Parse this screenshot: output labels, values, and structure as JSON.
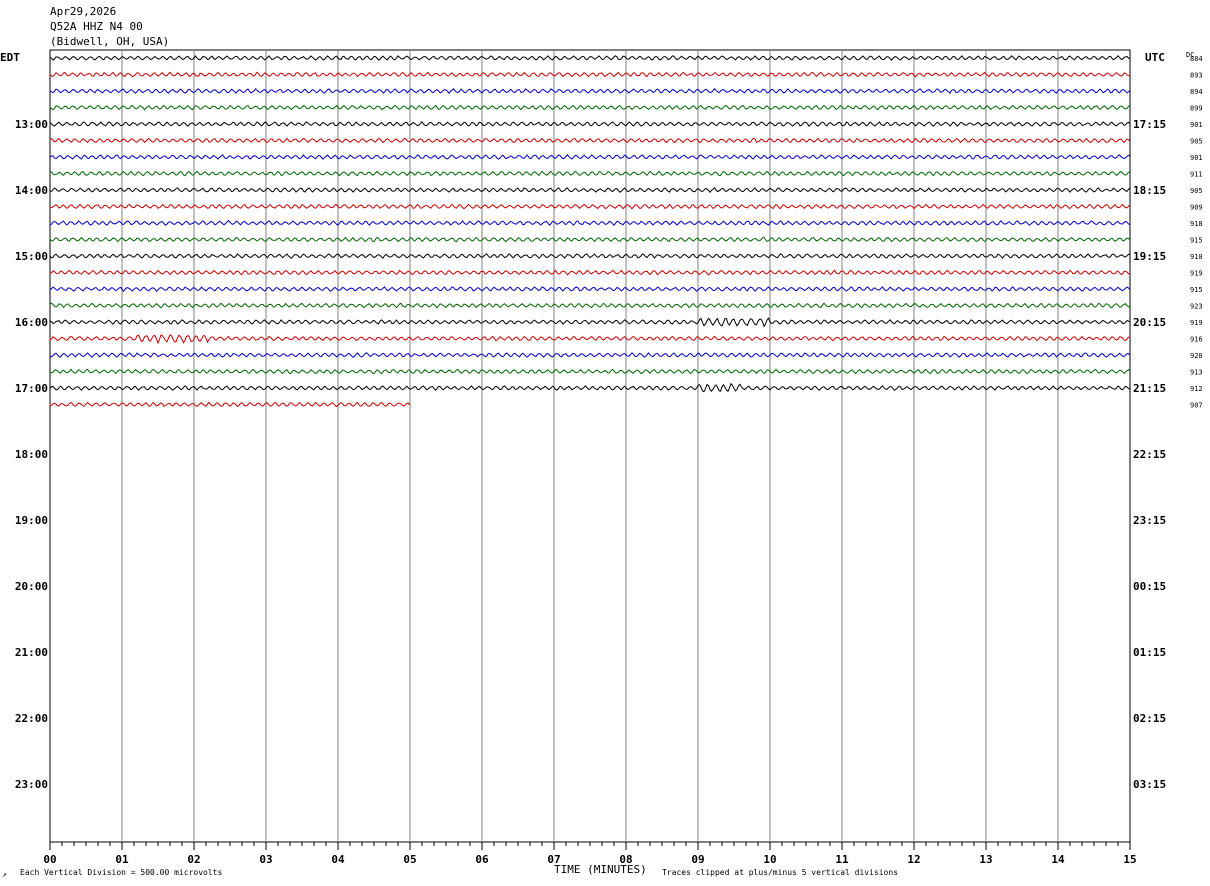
{
  "header": {
    "date": "Apr29,2026",
    "station": "Q52A HHZ N4 00",
    "location": "(Bidwell, OH, USA)"
  },
  "left_tz": "EDT",
  "right_tz": "UTC",
  "dc_label": "DC",
  "chart_data": {
    "type": "line",
    "xlabel": "TIME (MINUTES)",
    "xlim": [
      0,
      15
    ],
    "x_ticks": [
      "00",
      "01",
      "02",
      "03",
      "04",
      "05",
      "06",
      "07",
      "08",
      "09",
      "10",
      "11",
      "12",
      "13",
      "14",
      "15"
    ],
    "left_time_labels": [
      "13:00",
      "14:00",
      "15:00",
      "16:00",
      "17:00",
      "18:00",
      "19:00",
      "20:00",
      "21:00",
      "22:00",
      "23:00"
    ],
    "right_time_labels": [
      "17:15",
      "18:15",
      "19:15",
      "20:15",
      "21:15",
      "22:15",
      "23:15",
      "00:15",
      "01:15",
      "02:15",
      "03:15"
    ],
    "dc_offsets": [
      "884",
      "893",
      "894",
      "899",
      "901",
      "905",
      "901",
      "911",
      "905",
      "909",
      "918",
      "915",
      "910",
      "919",
      "915",
      "923",
      "919",
      "916",
      "920",
      "913",
      "912",
      "907"
    ],
    "trace_colors": [
      "#000000",
      "#cc0000",
      "#0000cc",
      "#006600"
    ],
    "trace_count": 22,
    "last_trace_end_minute": 5,
    "events": [
      {
        "trace": 16,
        "start_minute": 9.0,
        "end_minute": 10.0
      },
      {
        "trace": 17,
        "start_minute": 1.2,
        "end_minute": 2.2
      },
      {
        "trace": 20,
        "start_minute": 9.0,
        "end_minute": 9.6
      }
    ],
    "grid": true
  },
  "footer": {
    "scale": "Each Vertical Division =  500.00 microvolts",
    "clip": "Traces clipped at plus/minus 5 vertical divisions"
  }
}
